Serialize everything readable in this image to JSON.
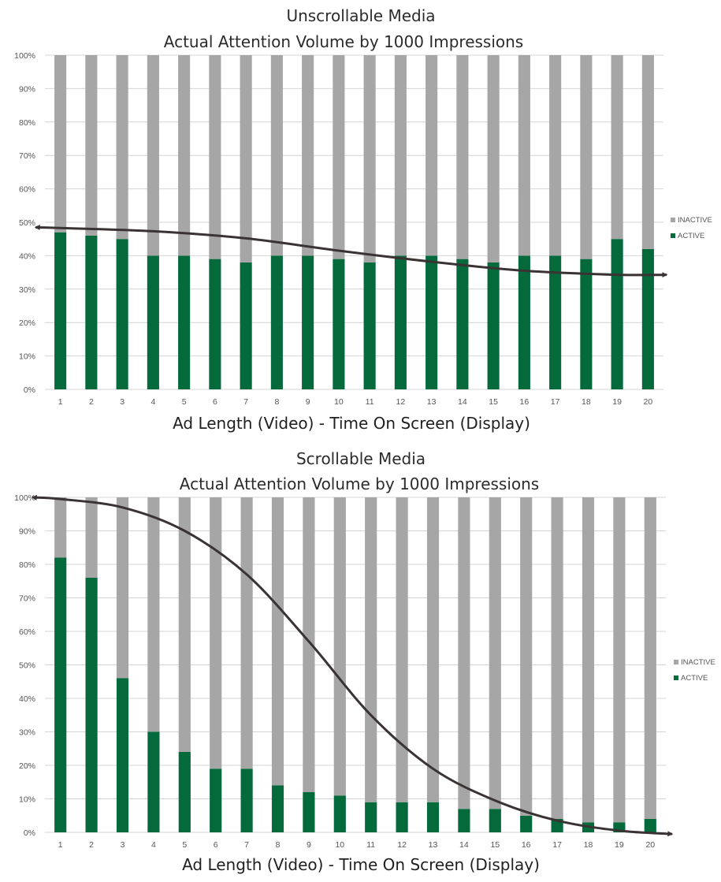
{
  "chart_data": [
    {
      "type": "bar",
      "stacked": true,
      "title": "Unscrollable Media",
      "subtitle": "Actual Attention Volume by 1000 Impressions",
      "xlabel": "Ad Length (Video) - Time On Screen (Display)",
      "ylabel": "",
      "ylim": [
        0,
        100
      ],
      "y_ticks": [
        "0%",
        "10%",
        "20%",
        "30%",
        "40%",
        "50%",
        "60%",
        "70%",
        "80%",
        "90%",
        "100%"
      ],
      "categories": [
        "1",
        "2",
        "3",
        "4",
        "5",
        "6",
        "7",
        "8",
        "9",
        "10",
        "11",
        "12",
        "13",
        "14",
        "15",
        "16",
        "17",
        "18",
        "19",
        "20"
      ],
      "series": [
        {
          "name": "ACTIVE",
          "color": "#046a3b",
          "values": [
            47,
            46,
            45,
            40,
            40,
            39,
            38,
            40,
            40,
            39,
            38,
            40,
            40,
            39,
            38,
            40,
            40,
            39,
            45,
            42
          ]
        },
        {
          "name": "INACTIVE",
          "color": "#a6a6a6",
          "values": [
            53,
            54,
            55,
            60,
            60,
            61,
            62,
            60,
            60,
            61,
            62,
            60,
            60,
            61,
            62,
            60,
            60,
            61,
            55,
            58
          ]
        }
      ],
      "legend": [
        "INACTIVE",
        "ACTIVE"
      ],
      "legend_position": "right",
      "grid": true,
      "trend_line": {
        "x": [
          0.2,
          1,
          4,
          7,
          10,
          13,
          16,
          19,
          20.6
        ],
        "y": [
          48.5,
          48.3,
          47.3,
          45.2,
          41.5,
          38.2,
          35.5,
          34.3,
          34.3
        ],
        "color": "#3a3333"
      }
    },
    {
      "type": "bar",
      "stacked": true,
      "title": "Scrollable Media",
      "subtitle": "Actual Attention Volume by 1000 Impressions",
      "xlabel": "Ad Length (Video) - Time On Screen (Display)",
      "ylabel": "",
      "ylim": [
        0,
        100
      ],
      "y_ticks": [
        "0%",
        "10%",
        "20%",
        "30%",
        "40%",
        "50%",
        "60%",
        "70%",
        "80%",
        "90%",
        "100%"
      ],
      "categories": [
        "1",
        "2",
        "3",
        "4",
        "5",
        "6",
        "7",
        "8",
        "9",
        "10",
        "11",
        "12",
        "13",
        "14",
        "15",
        "16",
        "17",
        "18",
        "19",
        "20"
      ],
      "series": [
        {
          "name": "ACTIVE",
          "color": "#046a3b",
          "values": [
            82,
            76,
            46,
            30,
            24,
            19,
            19,
            14,
            12,
            11,
            9,
            9,
            9,
            7,
            7,
            5,
            4,
            3,
            3,
            4
          ]
        },
        {
          "name": "INACTIVE",
          "color": "#a6a6a6",
          "values": [
            18,
            24,
            54,
            70,
            76,
            81,
            81,
            86,
            88,
            89,
            91,
            91,
            91,
            93,
            93,
            95,
            96,
            97,
            97,
            96
          ]
        }
      ],
      "legend": [
        "INACTIVE",
        "ACTIVE"
      ],
      "legend_position": "right",
      "grid": true,
      "trend_line": {
        "x": [
          0.1,
          1,
          3,
          5,
          7,
          9,
          11,
          13,
          15,
          17,
          19,
          20.7
        ],
        "y": [
          100,
          99.5,
          97,
          90,
          77,
          57,
          35,
          19,
          9.5,
          3.5,
          0.5,
          -0.5
        ],
        "color": "#3a3333"
      }
    }
  ]
}
